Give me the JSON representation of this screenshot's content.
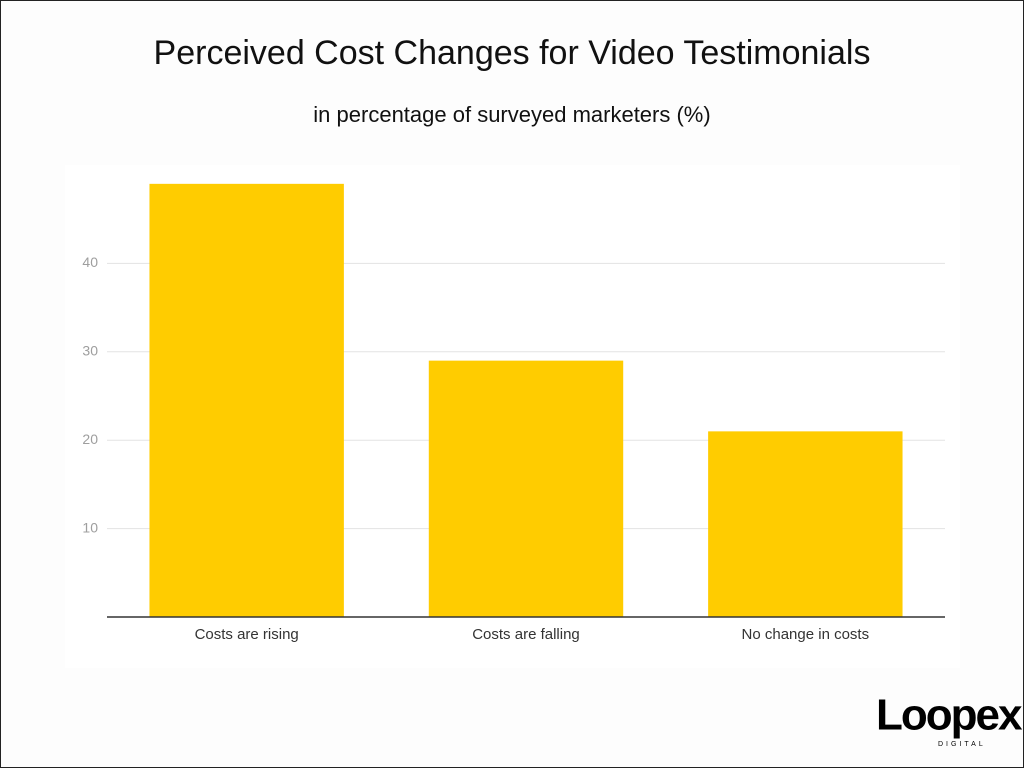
{
  "chart_data": {
    "type": "bar",
    "title": "Perceived Cost Changes for Video Testimonials",
    "subtitle": "in percentage of surveyed marketers (%)",
    "categories": [
      "Costs are rising",
      "Costs are falling",
      "No change in costs"
    ],
    "values": [
      49,
      29,
      21
    ],
    "color": "#ffcc00",
    "ylim": [
      0,
      50
    ],
    "yticks": [
      10,
      20,
      30,
      40
    ],
    "grid": true
  },
  "logo": {
    "name": "Loopex",
    "tagline": "DIGITAL"
  }
}
